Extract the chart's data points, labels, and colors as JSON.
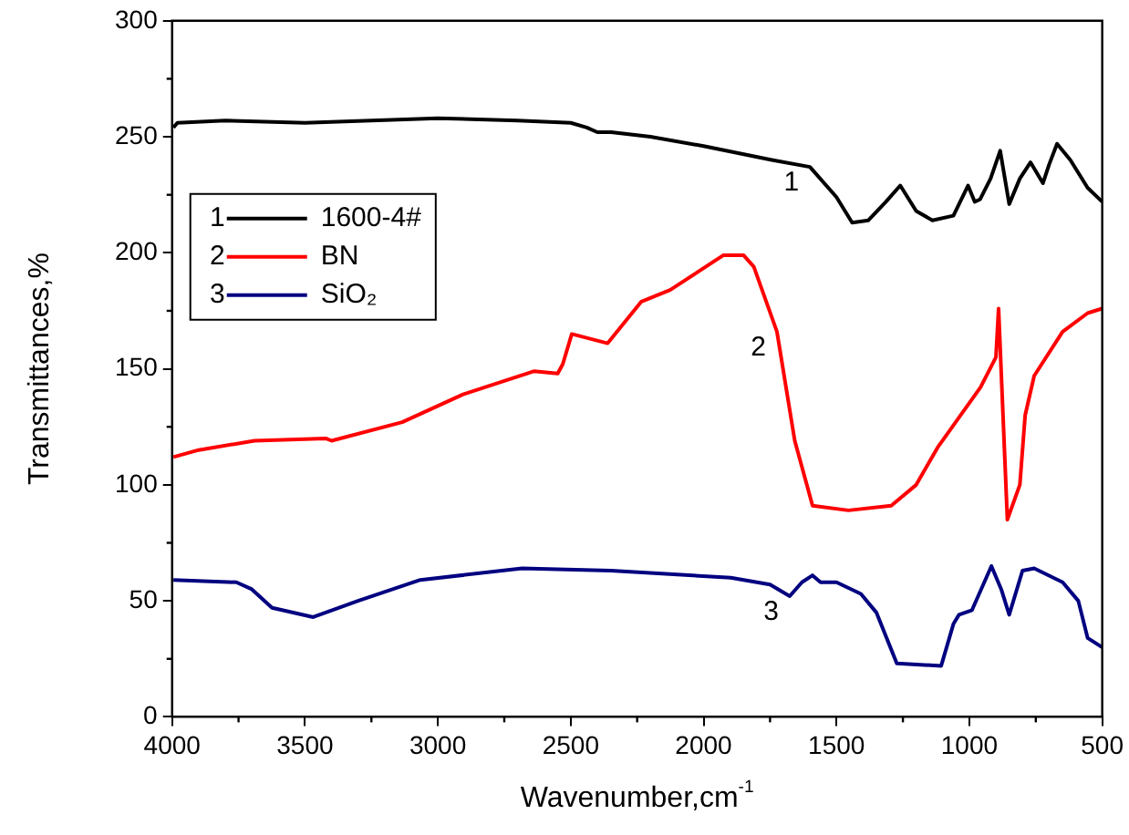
{
  "chart_data": {
    "type": "line",
    "xlabel": "Wavenumber,cm$^{-1}$",
    "ylabel": "Transmittances,%",
    "xlim": [
      4000,
      500
    ],
    "xticks": [
      4000,
      3500,
      3000,
      2500,
      2000,
      1500,
      1000,
      500
    ],
    "ylim": [
      0,
      300
    ],
    "yticks": [
      0,
      50,
      100,
      150,
      200,
      250,
      300
    ],
    "grid": false,
    "legend": "top left",
    "marker": "none",
    "line_style": "solid",
    "annotations": [
      {
        "text": "1",
        "x": 1600,
        "y": 237
      },
      {
        "text": "2",
        "x": 1724,
        "y": 166
      },
      {
        "text": "3",
        "x": 1676,
        "y": 52
      }
    ],
    "series": [
      {
        "name": "1600-4#",
        "color": "#000000",
        "x": [
          3995,
          3980,
          3800,
          3500,
          3000,
          2700,
          2500,
          2440,
          2400,
          2348,
          2200,
          2000,
          1743,
          1600,
          1500,
          1441,
          1380,
          1314,
          1260,
          1200,
          1139,
          1060,
          1005,
          980,
          960,
          920,
          884,
          850,
          810,
          770,
          723,
          700,
          670,
          620,
          555,
          500
        ],
        "values": [
          254,
          256,
          257,
          256,
          258,
          257,
          256,
          254,
          252,
          252,
          250,
          246,
          240,
          237,
          224,
          213,
          214,
          222,
          229,
          218,
          214,
          216,
          229,
          222,
          223,
          232,
          244,
          221,
          232,
          239,
          230,
          238,
          247,
          240,
          228,
          222
        ]
      },
      {
        "name": "BN",
        "color": "#ff0000",
        "x": [
          3995,
          3900,
          3690,
          3422,
          3400,
          3134,
          2905,
          2637,
          2549,
          2530,
          2496,
          2361,
          2234,
          2126,
          1925,
          1850,
          1811,
          1724,
          1657,
          1590,
          1455,
          1294,
          1200,
          1120,
          958,
          900,
          890,
          857,
          810,
          790,
          756,
          649,
          555,
          500
        ],
        "values": [
          112,
          115,
          119,
          120,
          119,
          127,
          139,
          149,
          148,
          152,
          165,
          161,
          179,
          184,
          199,
          199,
          194,
          166,
          119,
          91,
          89,
          91,
          100,
          116,
          142,
          155,
          176,
          85,
          100,
          130,
          147,
          166,
          174,
          176
        ]
      },
      {
        "name": "SiO₂",
        "color": "#000080",
        "x": [
          3995,
          3758,
          3700,
          3624,
          3469,
          3300,
          3066,
          2683,
          2348,
          1898,
          1750,
          1676,
          1630,
          1590,
          1560,
          1500,
          1408,
          1350,
          1273,
          1106,
          1060,
          1039,
          990,
          917,
          880,
          850,
          800,
          756,
          649,
          590,
          555,
          500
        ],
        "values": [
          59,
          58,
          55,
          47,
          43,
          50,
          59,
          64,
          63,
          60,
          57,
          52,
          58,
          61,
          58,
          58,
          53,
          45,
          23,
          22,
          40,
          44,
          46,
          65,
          55,
          44,
          63,
          64,
          58,
          50,
          34,
          30
        ]
      }
    ]
  }
}
